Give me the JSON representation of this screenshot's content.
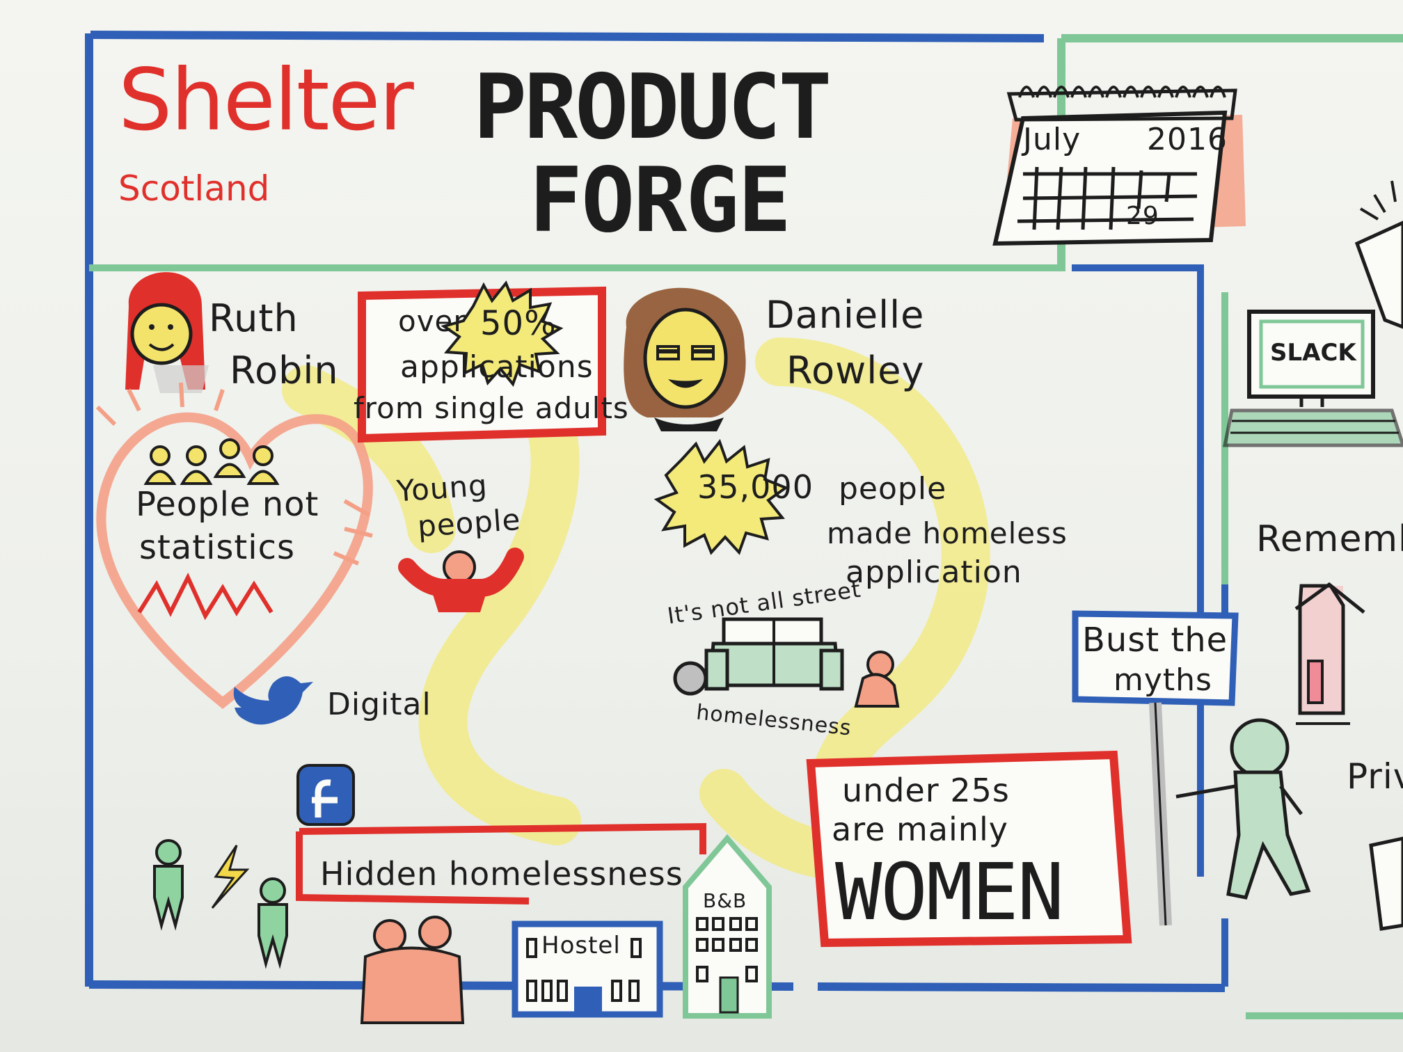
{
  "header": {
    "brand": "Shelter",
    "brand_sub": "Scotland",
    "title_line1": "PRODUCT",
    "title_line2": "FORGE"
  },
  "calendar": {
    "month": "July",
    "year": "2016",
    "day": "29"
  },
  "speakers": [
    {
      "first": "Ruth",
      "last": "Robin"
    },
    {
      "first": "Danielle",
      "last": "Rowley"
    }
  ],
  "stats": {
    "over_text": "over",
    "percent": "50%",
    "applications_line1": "applications",
    "applications_line2": "from single adults",
    "count": "35,000",
    "count_line1": "people",
    "count_line2": "made homeless",
    "count_line3": "application"
  },
  "notes": {
    "people_not_line1": "People not",
    "people_not_line2": "statistics",
    "young_line1": "Young",
    "young_line2": "people",
    "not_street": "It's not all street",
    "homelessness": "homelessness",
    "digital": "Digital",
    "hidden": "Hidden homelessness",
    "hostel": "Hostel",
    "bnb": "B&B",
    "under_line1": "under 25s",
    "under_line2": "are mainly",
    "women": "WOMEN",
    "bust_line1": "Bust the",
    "bust_line2": "myths",
    "slack": "SLACK",
    "remember": "Rememb",
    "priv": "Priv"
  },
  "colors": {
    "blue": "#2f5fb6",
    "green": "#7fc797",
    "red": "#e0302b",
    "yellow": "#f2e86a",
    "orange": "#f2a07a",
    "ink": "#1d1d1d"
  }
}
